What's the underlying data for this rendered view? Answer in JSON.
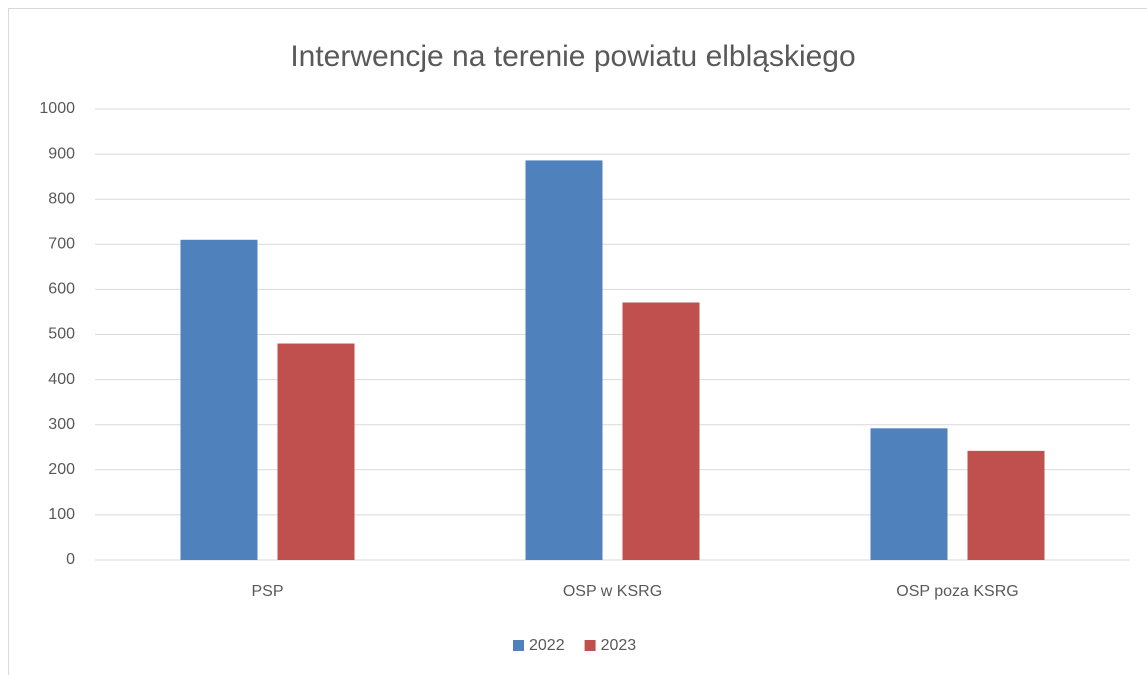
{
  "chart_data": {
    "type": "bar",
    "title": "Interwencje na terenie powiatu elbląskiego",
    "categories": [
      "PSP",
      "OSP w KSRG",
      "OSP poza KSRG"
    ],
    "series": [
      {
        "name": "2022",
        "color": "#4f81bd",
        "values": [
          710,
          886,
          292
        ]
      },
      {
        "name": "2023",
        "color": "#c0504d",
        "values": [
          480,
          571,
          242
        ]
      }
    ],
    "ylim": [
      0,
      1000
    ],
    "yticks": [
      0,
      100,
      200,
      300,
      400,
      500,
      600,
      700,
      800,
      900,
      1000
    ],
    "grid": true,
    "legend": "bottom"
  }
}
